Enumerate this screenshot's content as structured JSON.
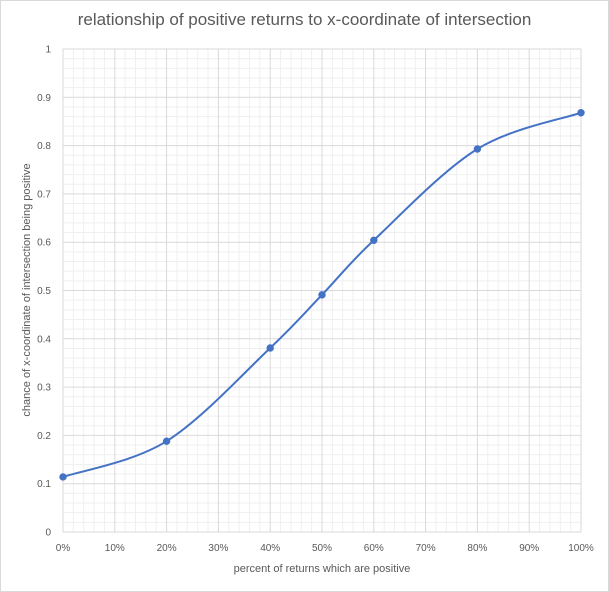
{
  "chart_data": {
    "type": "scatter",
    "title": "relationship of positive returns to x-coordinate of intersection",
    "xlabel": "percent of returns which are positive",
    "ylabel": "chance of x-coordinate of intersection being positive",
    "xlim": [
      0,
      1
    ],
    "ylim": [
      0,
      1
    ],
    "x_tick_labels": [
      "0%",
      "10%",
      "20%",
      "30%",
      "40%",
      "50%",
      "60%",
      "70%",
      "80%",
      "90%",
      "100%"
    ],
    "y_tick_labels": [
      "0",
      "0.1",
      "0.2",
      "0.3",
      "0.4",
      "0.5",
      "0.6",
      "0.7",
      "0.8",
      "0.9",
      "1"
    ],
    "grid": "major and minor",
    "legend": "none",
    "line_style": "smoothed",
    "series": [
      {
        "color": "#4472c4",
        "x": [
          0.0,
          0.2,
          0.4,
          0.5,
          0.6,
          0.8,
          1.0
        ],
        "y": [
          0.114,
          0.188,
          0.381,
          0.491,
          0.604,
          0.793,
          0.868
        ]
      }
    ]
  }
}
